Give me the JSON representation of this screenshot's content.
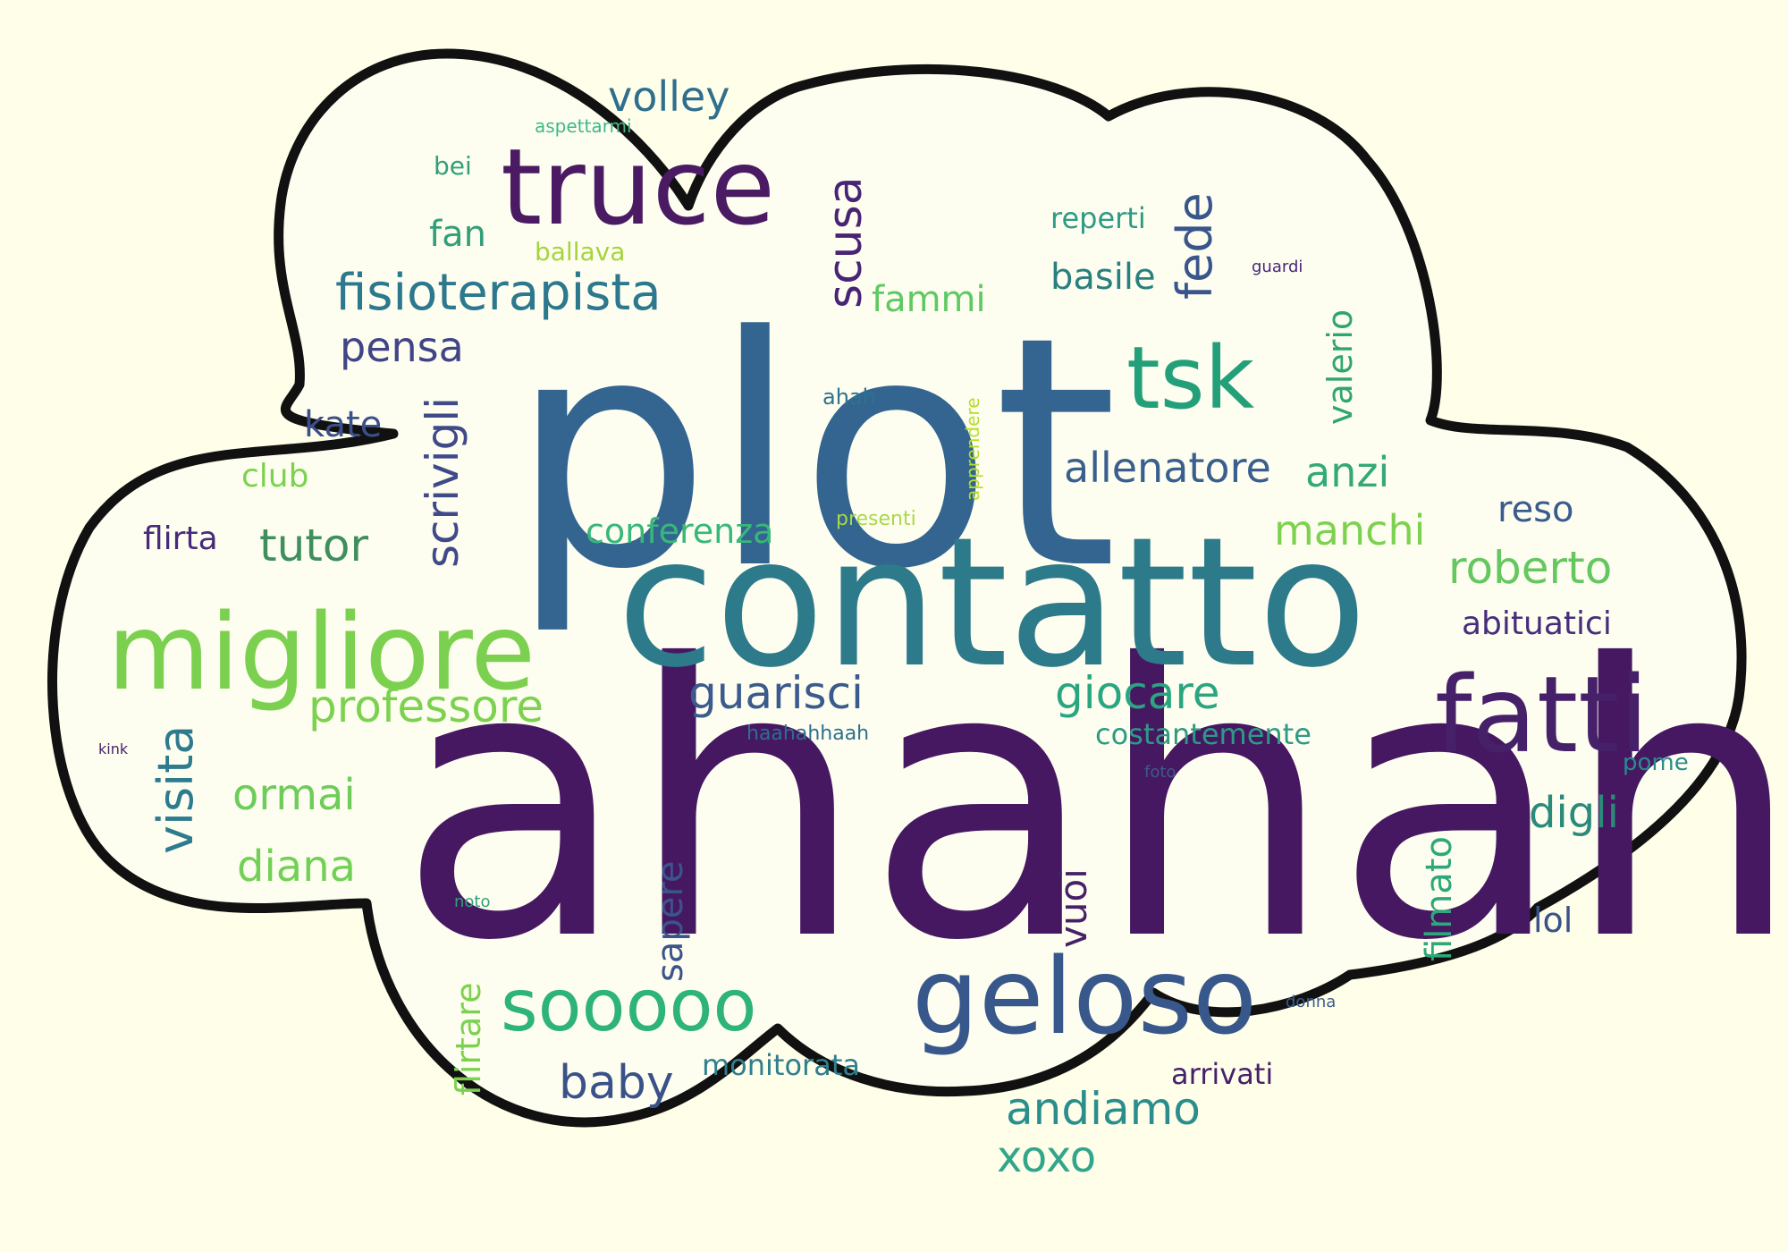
{
  "colors": {
    "background": "#fefee9",
    "cloud_fill": "#fefef0",
    "cloud_outline": "#111111"
  },
  "words": [
    {
      "text": "ahahah",
      "color": "#461862",
      "vertical": false
    },
    {
      "text": "plot",
      "color": "#336590",
      "vertical": false
    },
    {
      "text": "contatto",
      "color": "#2d7a8a",
      "vertical": false
    },
    {
      "text": "truce",
      "color": "#4a1b63",
      "vertical": false
    },
    {
      "text": "migliore",
      "color": "#7cd050",
      "vertical": false
    },
    {
      "text": "fatti",
      "color": "#46216a",
      "vertical": false
    },
    {
      "text": "geloso",
      "color": "#38588c",
      "vertical": false
    },
    {
      "text": "tsk",
      "color": "#23a07a",
      "vertical": false
    },
    {
      "text": "sooooo",
      "color": "#2eb37a",
      "vertical": false
    },
    {
      "text": "fisioterapista",
      "color": "#2c788e",
      "vertical": false
    },
    {
      "text": "guarisci",
      "color": "#3b5a8d",
      "vertical": false
    },
    {
      "text": "giocare",
      "color": "#29a680",
      "vertical": false
    },
    {
      "text": "professore",
      "color": "#7cd250",
      "vertical": false
    },
    {
      "text": "roberto",
      "color": "#64c760",
      "vertical": false
    },
    {
      "text": "andiamo",
      "color": "#2a8e8c",
      "vertical": false
    },
    {
      "text": "tutor",
      "color": "#3f8e5e",
      "vertical": false
    },
    {
      "text": "allenatore",
      "color": "#3a5f8e",
      "vertical": false
    },
    {
      "text": "manchi",
      "color": "#7cd250",
      "vertical": false
    },
    {
      "text": "anzi",
      "color": "#33a978",
      "vertical": false
    },
    {
      "text": "volley",
      "color": "#2e6e8e",
      "vertical": false
    },
    {
      "text": "conferenza",
      "color": "#38b77a",
      "vertical": false
    },
    {
      "text": "baby",
      "color": "#3a528a",
      "vertical": false
    },
    {
      "text": "xoxo",
      "color": "#31a68a",
      "vertical": false
    },
    {
      "text": "pensa",
      "color": "#414487",
      "vertical": false
    },
    {
      "text": "ormai",
      "color": "#6dcc5a",
      "vertical": false
    },
    {
      "text": "diana",
      "color": "#73d056",
      "vertical": false
    },
    {
      "text": "digli",
      "color": "#2b8a7a",
      "vertical": false
    },
    {
      "text": "basile",
      "color": "#29807e",
      "vertical": false
    },
    {
      "text": "fammi",
      "color": "#5ec962",
      "vertical": false
    },
    {
      "text": "reso",
      "color": "#3b5b8d",
      "vertical": false
    },
    {
      "text": "abituatici",
      "color": "#472d7b",
      "vertical": false
    },
    {
      "text": "costantemente",
      "color": "#2e9a86",
      "vertical": false
    },
    {
      "text": "monitorata",
      "color": "#2e7f8e",
      "vertical": false
    },
    {
      "text": "arrivati",
      "color": "#46216a",
      "vertical": false
    },
    {
      "text": "fan",
      "color": "#31a07a",
      "vertical": false
    },
    {
      "text": "kate",
      "color": "#3b4f8a",
      "vertical": false
    },
    {
      "text": "club",
      "color": "#7cd250",
      "vertical": false
    },
    {
      "text": "flirta",
      "color": "#472b7a",
      "vertical": false
    },
    {
      "text": "reperti",
      "color": "#2e9a86",
      "vertical": false
    },
    {
      "text": "lol",
      "color": "#3a528a",
      "vertical": false
    },
    {
      "text": "ballava",
      "color": "#a5d43d",
      "vertical": false
    },
    {
      "text": "presenti",
      "color": "#a8d84a",
      "vertical": false
    },
    {
      "text": "bei",
      "color": "#31a07a",
      "vertical": false
    },
    {
      "text": "pome",
      "color": "#2b8a8c",
      "vertical": false
    },
    {
      "text": "ahah",
      "color": "#2c728e",
      "vertical": false
    },
    {
      "text": "haahahhaah",
      "color": "#2c6f8e",
      "vertical": false
    },
    {
      "text": "aspettarmi",
      "color": "#3fb88a",
      "vertical": false
    },
    {
      "text": "guardi",
      "color": "#482677",
      "vertical": false
    },
    {
      "text": "foto",
      "color": "#3b5b8d",
      "vertical": false
    },
    {
      "text": "noto",
      "color": "#31a07a",
      "vertical": false
    },
    {
      "text": "kink",
      "color": "#46216a",
      "vertical": false
    },
    {
      "text": "donna",
      "color": "#3b5b8d",
      "vertical": false
    },
    {
      "text": "scusa",
      "color": "#482475",
      "vertical": true
    },
    {
      "text": "fede",
      "color": "#39568c",
      "vertical": true
    },
    {
      "text": "valerio",
      "color": "#2fa56f",
      "vertical": true
    },
    {
      "text": "scrivigli",
      "color": "#404a89",
      "vertical": true
    },
    {
      "text": "visita",
      "color": "#2e7a8e",
      "vertical": true
    },
    {
      "text": "sapere",
      "color": "#3a548c",
      "vertical": true
    },
    {
      "text": "vuoi",
      "color": "#46216a",
      "vertical": true
    },
    {
      "text": "filmato",
      "color": "#2ea87a",
      "vertical": true
    },
    {
      "text": "flirtare",
      "color": "#7cd250",
      "vertical": true
    },
    {
      "text": "apprendere",
      "color": "#b5de2b",
      "vertical": true
    }
  ]
}
